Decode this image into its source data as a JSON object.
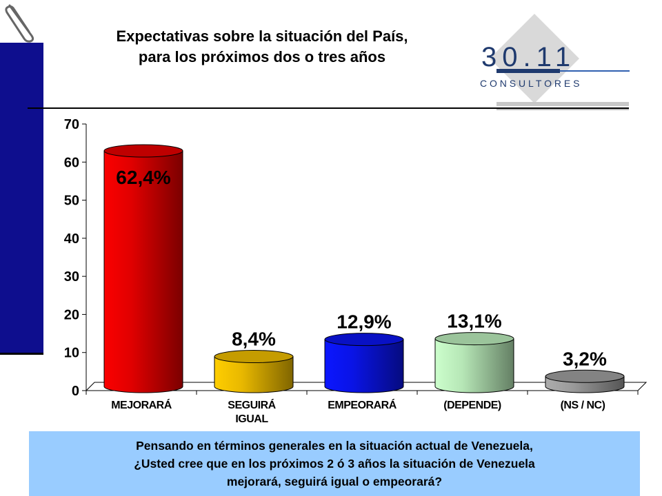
{
  "title": {
    "line1": "Expectativas sobre la situación del País,",
    "line2": "para los próximos dos o tres años"
  },
  "logo": {
    "number": "30.11",
    "sub": "C O N S U L T O R E S",
    "colors": {
      "diamond": "#d9d9d9",
      "navy": "#1f3a6e",
      "bar": "#2f5fb0"
    }
  },
  "paperclip_icon": "paperclip-icon",
  "chart_data": {
    "type": "bar",
    "style": "3d-cylinder",
    "categories": [
      "MEJORARÁ",
      "SEGUIRÁ IGUAL",
      "EMPEORARÁ",
      "(DEPENDE)",
      "(NS / NC)"
    ],
    "category_lines": [
      [
        "MEJORARÁ"
      ],
      [
        "SEGUIRÁ",
        "IGUAL"
      ],
      [
        "EMPEORARÁ"
      ],
      [
        "(DEPENDE)"
      ],
      [
        "(NS / NC)"
      ]
    ],
    "values": [
      62.4,
      8.4,
      12.9,
      13.1,
      3.2
    ],
    "data_labels": [
      "62,4%",
      "8,4%",
      "12,9%",
      "13,1%",
      "3,2%"
    ],
    "colors": [
      "#e00000",
      "#e8b800",
      "#0a14e6",
      "#b6e6b6",
      "#9a9a9a"
    ],
    "ylim": [
      0,
      70
    ],
    "yticks": [
      0,
      10,
      20,
      30,
      40,
      50,
      60,
      70
    ],
    "grid": false,
    "legend": "none"
  },
  "question": {
    "line1": "Pensando en términos generales en la situación actual de Venezuela,",
    "line2": "¿Usted cree que en los próximos 2 ó 3 años la situación de Venezuela",
    "line3": "mejorará, seguirá igual o empeorará?"
  }
}
